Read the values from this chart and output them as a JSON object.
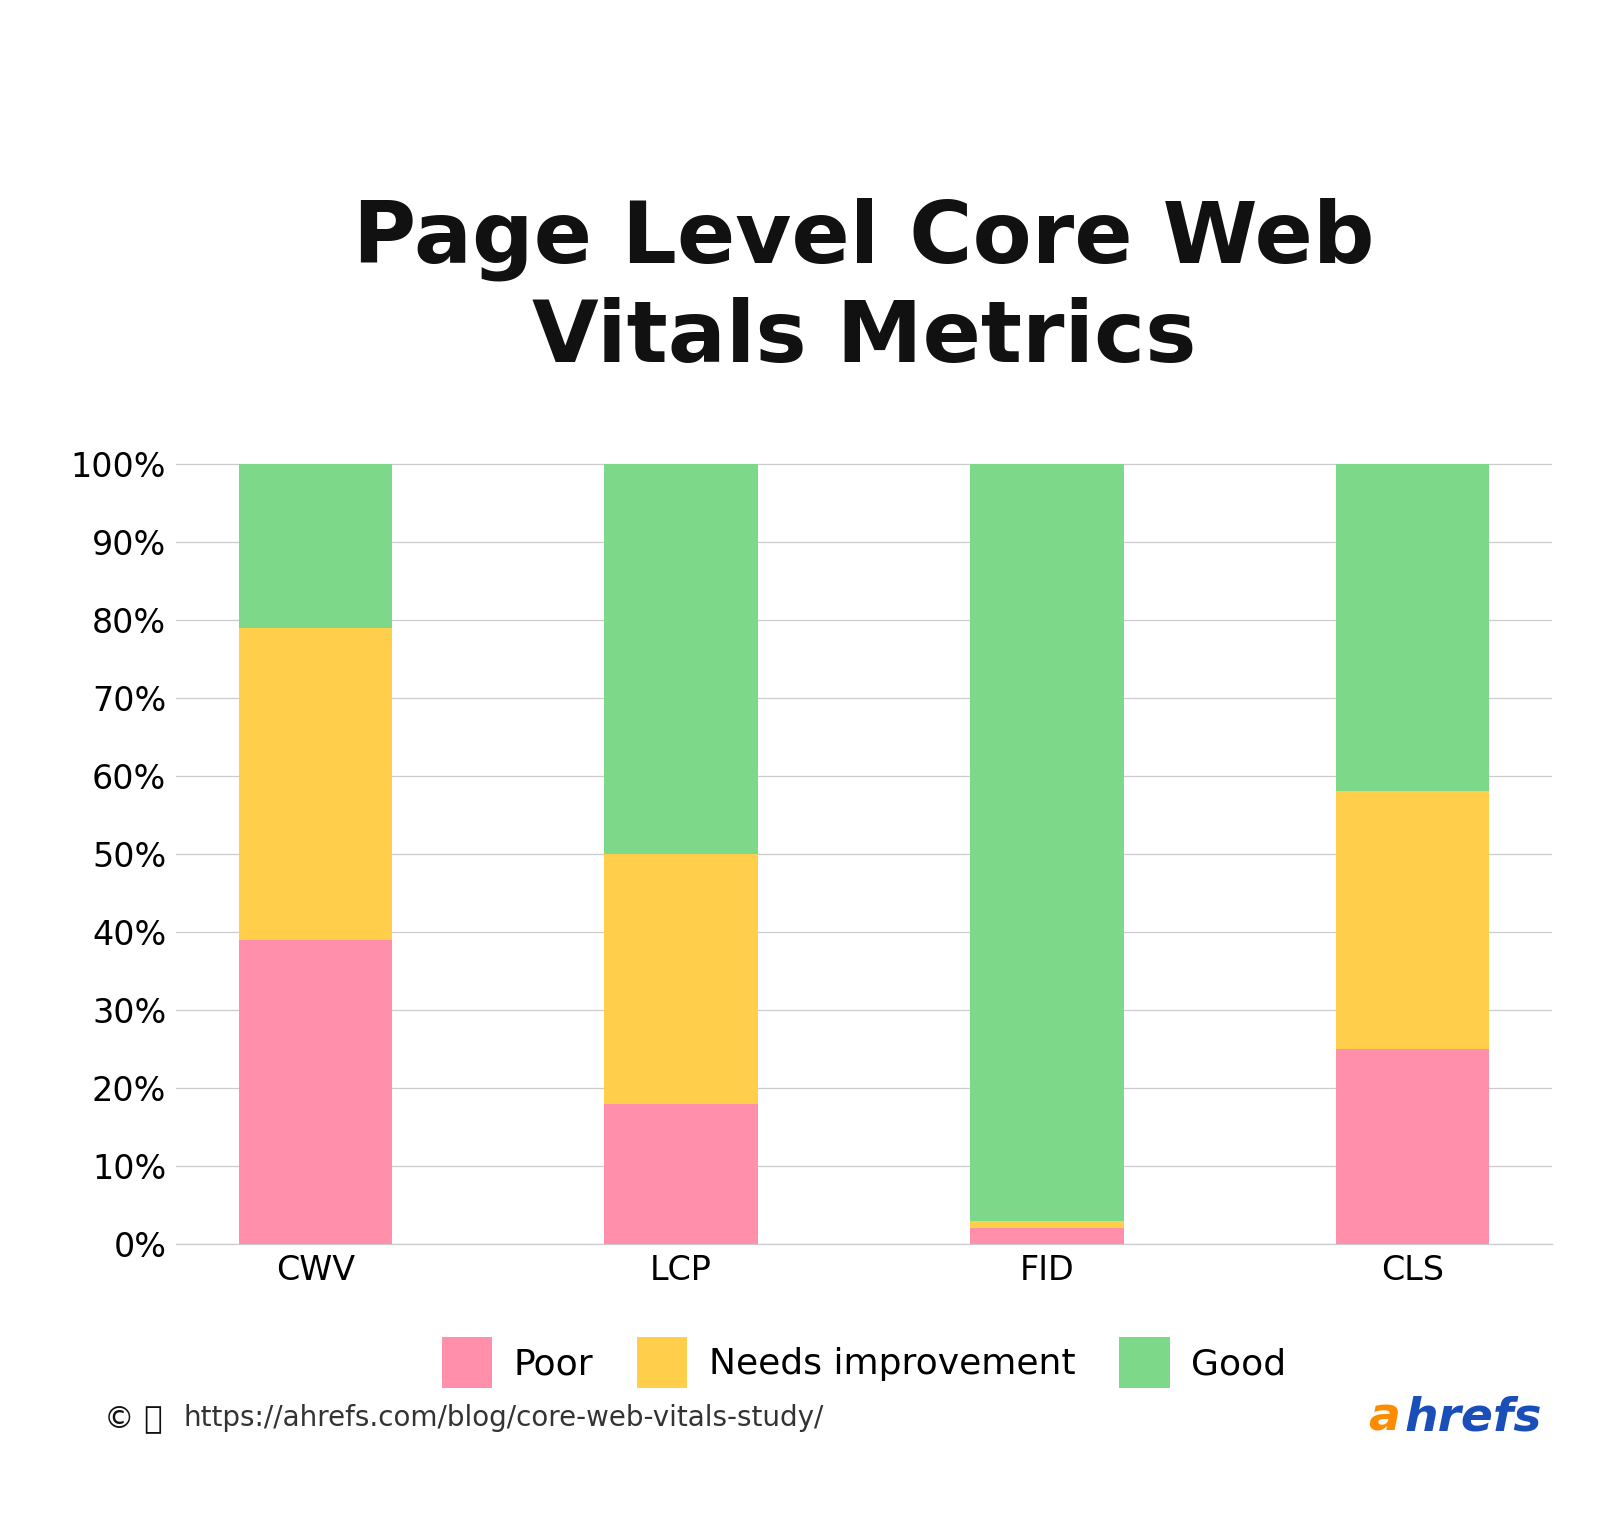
{
  "title": "Page Level Core Web\nVitals Metrics",
  "categories": [
    "CWV",
    "LCP",
    "FID",
    "CLS"
  ],
  "poor": [
    39,
    18,
    2,
    25
  ],
  "needs_improvement": [
    40,
    32,
    1,
    33
  ],
  "good": [
    21,
    50,
    97,
    42
  ],
  "color_poor": "#FF8FAB",
  "color_needs": "#FFCF4B",
  "color_good": "#7ED88A",
  "background_color": "#FFFFFF",
  "title_fontsize": 62,
  "tick_fontsize": 24,
  "legend_fontsize": 26,
  "url_text": "https://ahrefs.com/blog/core-web-vitals-study/",
  "url_fontsize": 20,
  "ahrefs_fontsize": 34,
  "ahrefs_color_a": "#FF8C00",
  "ahrefs_color_hrefs": "#1A4FBA",
  "icon_fontsize": 22
}
